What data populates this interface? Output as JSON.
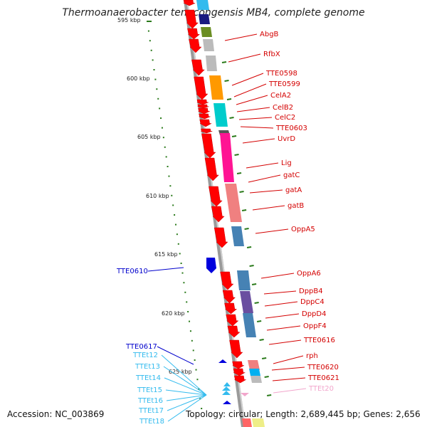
{
  "title": "Thermoanaerobacter tengcongensis MB4, complete genome",
  "accession": "Accession: NC_003869",
  "summary": "Topology: circular; Length: 2,689,445 bp; Genes: 2,656",
  "scale_labels": [
    "595 kbp",
    "600 kbp",
    "605 kbp",
    "610 kbp",
    "615 kbp",
    "620 kbp",
    "625 kbp"
  ],
  "forward_genes": [
    "AbgB",
    "RfbX",
    "TTE0598",
    "TTE0599",
    "CelA2",
    "CelB2",
    "CelC2",
    "TTE0603",
    "UvrD",
    "Lig",
    "gatC",
    "gatA",
    "gatB",
    "OppA5",
    "OppA6",
    "DppB4",
    "DppC4",
    "DppD4",
    "OppF4",
    "TTE0616",
    "rph",
    "TTE0620",
    "TTE0621"
  ],
  "trna_labels": [
    "TTEt20"
  ],
  "reverse_genes": [
    "TTE0610",
    "TTE0617"
  ],
  "reverse_trna": [
    "TTEt12",
    "TTEt13",
    "TTEt14",
    "TTEt15",
    "TTEt16",
    "TTEt17",
    "TTEt18"
  ],
  "colors": {
    "gene_arrow": "#ff0000",
    "gene_label": "#d40000",
    "reverse_gene": "#0000cc",
    "trna_label": "#33bbee",
    "trna_light": "#f2a6cc",
    "backbone": "#888888",
    "tick": "#2a7a1a"
  }
}
